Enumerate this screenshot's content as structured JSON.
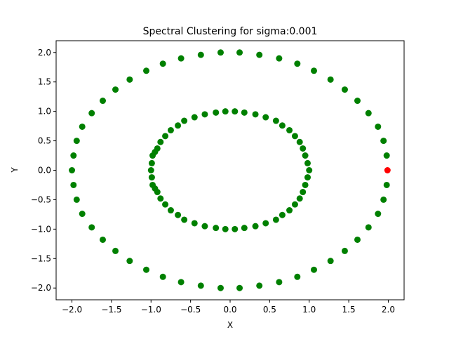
{
  "chart_data": {
    "type": "scatter",
    "title": "Spectral Clustering for sigma:0.001",
    "xlabel": "X",
    "ylabel": "Y",
    "xlim": [
      -2.2,
      2.2
    ],
    "ylim": [
      -2.2,
      2.2
    ],
    "xticks": [
      -2.0,
      -1.5,
      -1.0,
      -0.5,
      0.0,
      0.5,
      1.0,
      1.5,
      2.0
    ],
    "yticks": [
      -2.0,
      -1.5,
      -1.0,
      -0.5,
      0.0,
      0.5,
      1.0,
      1.5,
      2.0
    ],
    "xtick_labels": [
      "−2.0",
      "−1.5",
      "−1.0",
      "−0.5",
      "0.0",
      "0.5",
      "1.0",
      "1.5",
      "2.0"
    ],
    "ytick_labels": [
      "−2.0",
      "−1.5",
      "−1.0",
      "−0.5",
      "0.0",
      "0.5",
      "1.0",
      "1.5",
      "2.0"
    ],
    "grid": false,
    "series": [
      {
        "color": "#008000",
        "points": [
          [
            -2.0,
            0.0
          ],
          [
            -1.98,
            0.25
          ],
          [
            -1.98,
            -0.25
          ],
          [
            -1.94,
            0.5
          ],
          [
            -1.94,
            -0.5
          ],
          [
            -1.87,
            0.74
          ],
          [
            -1.87,
            -0.74
          ],
          [
            -1.75,
            0.97
          ],
          [
            -1.75,
            -0.97
          ],
          [
            -1.61,
            1.18
          ],
          [
            -1.61,
            -1.18
          ],
          [
            -1.45,
            1.37
          ],
          [
            -1.45,
            -1.37
          ],
          [
            -1.27,
            1.54
          ],
          [
            -1.27,
            -1.54
          ],
          [
            -1.06,
            1.69
          ],
          [
            -1.06,
            -1.69
          ],
          [
            -0.85,
            1.81
          ],
          [
            -0.85,
            -1.81
          ],
          [
            -0.62,
            1.9
          ],
          [
            -0.62,
            -1.9
          ],
          [
            -0.37,
            1.96
          ],
          [
            -0.37,
            -1.96
          ],
          [
            -0.12,
            2.0
          ],
          [
            -0.12,
            -2.0
          ],
          [
            0.12,
            2.0
          ],
          [
            0.12,
            -2.0
          ],
          [
            0.37,
            1.96
          ],
          [
            0.37,
            -1.96
          ],
          [
            0.62,
            1.9
          ],
          [
            0.62,
            -1.9
          ],
          [
            0.85,
            1.81
          ],
          [
            0.85,
            -1.81
          ],
          [
            1.06,
            1.69
          ],
          [
            1.06,
            -1.69
          ],
          [
            1.27,
            1.54
          ],
          [
            1.27,
            -1.54
          ],
          [
            1.45,
            1.37
          ],
          [
            1.45,
            -1.37
          ],
          [
            1.61,
            1.18
          ],
          [
            1.61,
            -1.18
          ],
          [
            1.75,
            0.97
          ],
          [
            1.75,
            -0.97
          ],
          [
            1.87,
            0.74
          ],
          [
            1.87,
            -0.74
          ],
          [
            1.94,
            0.5
          ],
          [
            1.94,
            -0.5
          ],
          [
            1.98,
            0.25
          ],
          [
            1.98,
            -0.25
          ],
          [
            -1.0,
            0.0
          ],
          [
            -0.99,
            0.12
          ],
          [
            -0.99,
            -0.12
          ],
          [
            -0.98,
            0.25
          ],
          [
            -0.98,
            -0.25
          ],
          [
            -0.95,
            0.31
          ],
          [
            -0.95,
            -0.31
          ],
          [
            -0.92,
            0.37
          ],
          [
            -0.92,
            -0.37
          ],
          [
            -0.88,
            0.48
          ],
          [
            -0.88,
            -0.48
          ],
          [
            -0.82,
            0.58
          ],
          [
            -0.82,
            -0.58
          ],
          [
            -0.75,
            0.68
          ],
          [
            -0.75,
            -0.68
          ],
          [
            -0.66,
            0.76
          ],
          [
            -0.66,
            -0.76
          ],
          [
            -0.58,
            0.84
          ],
          [
            -0.58,
            -0.84
          ],
          [
            -0.45,
            0.9
          ],
          [
            -0.45,
            -0.9
          ],
          [
            -0.32,
            0.95
          ],
          [
            -0.32,
            -0.95
          ],
          [
            -0.18,
            0.98
          ],
          [
            -0.18,
            -0.98
          ],
          [
            -0.06,
            1.0
          ],
          [
            -0.06,
            -1.0
          ],
          [
            0.06,
            1.0
          ],
          [
            0.06,
            -1.0
          ],
          [
            0.18,
            0.98
          ],
          [
            0.18,
            -0.98
          ],
          [
            0.32,
            0.95
          ],
          [
            0.32,
            -0.95
          ],
          [
            0.45,
            0.9
          ],
          [
            0.45,
            -0.9
          ],
          [
            0.58,
            0.84
          ],
          [
            0.58,
            -0.84
          ],
          [
            0.66,
            0.76
          ],
          [
            0.66,
            -0.76
          ],
          [
            0.75,
            0.68
          ],
          [
            0.75,
            -0.68
          ],
          [
            0.82,
            0.58
          ],
          [
            0.82,
            -0.58
          ],
          [
            0.88,
            0.48
          ],
          [
            0.88,
            -0.48
          ],
          [
            0.92,
            0.37
          ],
          [
            0.92,
            -0.37
          ],
          [
            0.95,
            0.25
          ],
          [
            0.95,
            -0.25
          ],
          [
            0.98,
            0.12
          ],
          [
            0.98,
            -0.12
          ],
          [
            1.0,
            0.0
          ]
        ]
      },
      {
        "color": "#ff0000",
        "points": [
          [
            1.99,
            0.0
          ]
        ]
      }
    ]
  }
}
